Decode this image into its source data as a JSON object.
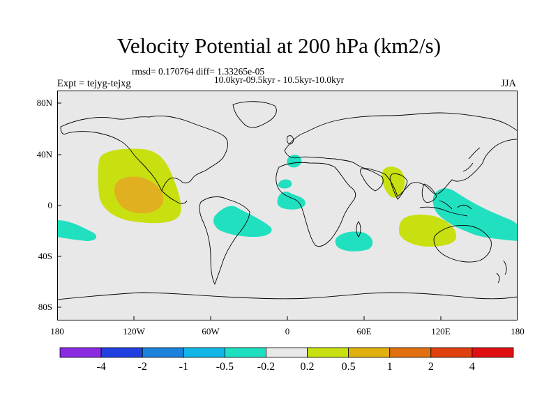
{
  "title": "Velocity Potential at 200 hPa (km2/s)",
  "stats_line": "rmsd= 0.170764 diff= 1.33265e-05",
  "period_line": "10.0kyr-09.5kyr - 10.5kyr-10.0kyr",
  "experiment": "Expt = tejyg-tejxg",
  "season": "JJA",
  "lat_labels": [
    "80N",
    "40N",
    "0",
    "40S",
    "80S"
  ],
  "lon_labels": [
    "180",
    "120W",
    "60W",
    "0",
    "60E",
    "120E",
    "180"
  ],
  "colorbar": {
    "labels": [
      "-4",
      "-2",
      "-1",
      "-0.5",
      "-0.2",
      "0.2",
      "0.5",
      "1",
      "2",
      "4"
    ],
    "colors": [
      "#8a2be2",
      "#2040e0",
      "#1a82dc",
      "#12b6e6",
      "#1ee0c0",
      "#e8e8e8",
      "#c8e010",
      "#e0b010",
      "#e07010",
      "#e04010",
      "#e01010"
    ]
  },
  "colors": {
    "background": "#e8e8e8",
    "positive_weak": "#c8e010",
    "positive_mid": "#e0b020",
    "negative_weak": "#20e0c0"
  }
}
